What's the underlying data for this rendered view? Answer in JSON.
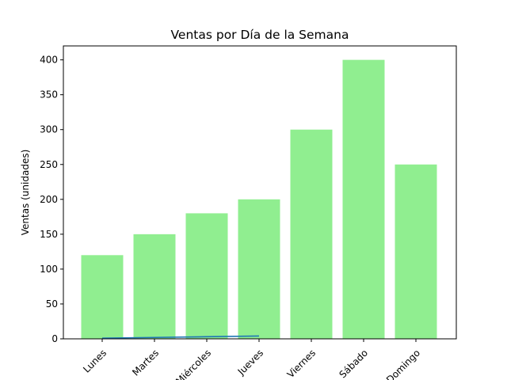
{
  "chart_data": {
    "type": "bar",
    "title": "Ventas por Día de la Semana",
    "xlabel": "",
    "ylabel": "Ventas (unidades)",
    "categories": [
      "Lunes",
      "Martes",
      "Miércoles",
      "Jueves",
      "Viernes",
      "Sábado",
      "Domingo"
    ],
    "values": [
      120,
      150,
      180,
      200,
      300,
      400,
      250
    ],
    "line": {
      "x": [
        "Lunes",
        "Martes",
        "Miércoles",
        "Jueves"
      ],
      "y": [
        1,
        2,
        3,
        4
      ]
    },
    "ylim": [
      0,
      420
    ],
    "yticks": [
      0,
      50,
      100,
      150,
      200,
      250,
      300,
      350,
      400
    ],
    "xtick_rotation": 45,
    "grid": false,
    "colors": {
      "bar": "#90ee90",
      "line": "#1f77b4"
    }
  }
}
